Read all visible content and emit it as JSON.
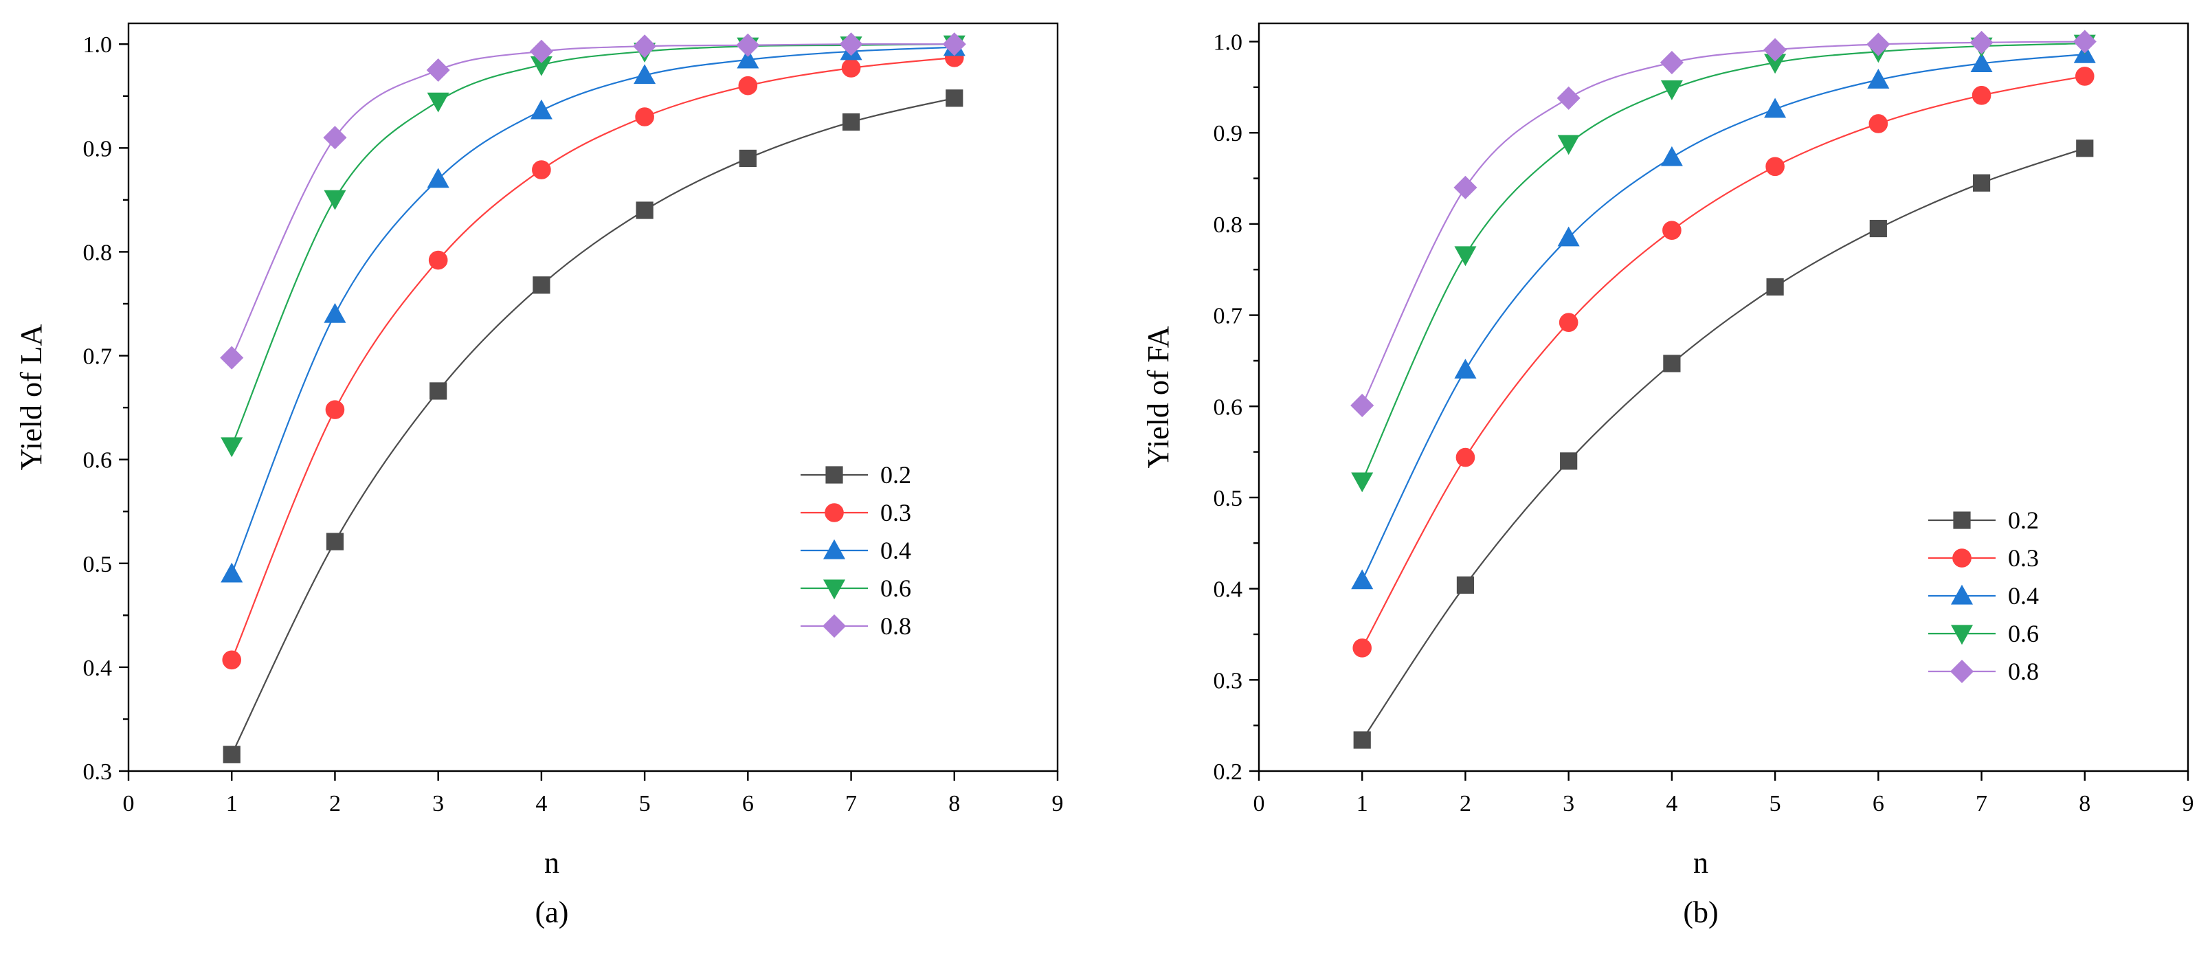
{
  "figure": {
    "palette": {
      "0.2": "#4d4d4d",
      "0.3": "#ff4040",
      "0.4": "#1f78d4",
      "0.6": "#22aa55",
      "0.8": "#b07ed8"
    }
  },
  "chart_data": [
    {
      "type": "line",
      "caption": "(a)",
      "title": "",
      "xlabel": "n",
      "ylabel": "Yield of LA",
      "xlim": [
        0,
        9
      ],
      "ylim": [
        0.3,
        1.02
      ],
      "xticks": [
        "0",
        "1",
        "2",
        "3",
        "4",
        "5",
        "6",
        "7",
        "8",
        "9"
      ],
      "yticks": [
        "0.3",
        "0.4",
        "0.5",
        "0.6",
        "0.7",
        "0.8",
        "0.9",
        "1.0"
      ],
      "legend_position": "bottom-right",
      "x": [
        1,
        2,
        3,
        4,
        5,
        6,
        7,
        8
      ],
      "series": [
        {
          "name": "0.2",
          "marker": "square",
          "values": [
            0.316,
            0.521,
            0.666,
            0.768,
            0.84,
            0.89,
            0.925,
            0.948
          ]
        },
        {
          "name": "0.3",
          "marker": "circle",
          "values": [
            0.407,
            0.648,
            0.792,
            0.879,
            0.93,
            0.96,
            0.977,
            0.987
          ]
        },
        {
          "name": "0.4",
          "marker": "triangle-up",
          "values": [
            0.49,
            0.74,
            0.87,
            0.936,
            0.97,
            0.985,
            0.993,
            0.997
          ]
        },
        {
          "name": "0.6",
          "marker": "triangle-down",
          "values": [
            0.613,
            0.851,
            0.945,
            0.98,
            0.993,
            0.998,
            0.999,
            1.0
          ]
        },
        {
          "name": "0.8",
          "marker": "diamond",
          "values": [
            0.698,
            0.91,
            0.975,
            0.993,
            0.998,
            0.999,
            1.0,
            1.0
          ]
        }
      ]
    },
    {
      "type": "line",
      "caption": "(b)",
      "title": "",
      "xlabel": "n",
      "ylabel": "Yield of FA",
      "xlim": [
        0,
        9
      ],
      "ylim": [
        0.2,
        1.02
      ],
      "xticks": [
        "0",
        "1",
        "2",
        "3",
        "4",
        "5",
        "6",
        "7",
        "8",
        "9"
      ],
      "yticks": [
        "0.2",
        "0.3",
        "0.4",
        "0.5",
        "0.6",
        "0.7",
        "0.8",
        "0.9",
        "1.0"
      ],
      "legend_position": "bottom-right",
      "x": [
        1,
        2,
        3,
        4,
        5,
        6,
        7,
        8
      ],
      "series": [
        {
          "name": "0.2",
          "marker": "square",
          "values": [
            0.234,
            0.404,
            0.54,
            0.647,
            0.731,
            0.795,
            0.845,
            0.883
          ]
        },
        {
          "name": "0.3",
          "marker": "circle",
          "values": [
            0.335,
            0.544,
            0.692,
            0.793,
            0.863,
            0.91,
            0.941,
            0.962
          ]
        },
        {
          "name": "0.4",
          "marker": "triangle-up",
          "values": [
            0.409,
            0.64,
            0.785,
            0.873,
            0.926,
            0.958,
            0.976,
            0.986
          ]
        },
        {
          "name": "0.6",
          "marker": "triangle-down",
          "values": [
            0.518,
            0.766,
            0.888,
            0.948,
            0.977,
            0.989,
            0.995,
            0.998
          ]
        },
        {
          "name": "0.8",
          "marker": "diamond",
          "values": [
            0.601,
            0.84,
            0.938,
            0.977,
            0.991,
            0.997,
            0.999,
            1.0
          ]
        }
      ]
    }
  ]
}
